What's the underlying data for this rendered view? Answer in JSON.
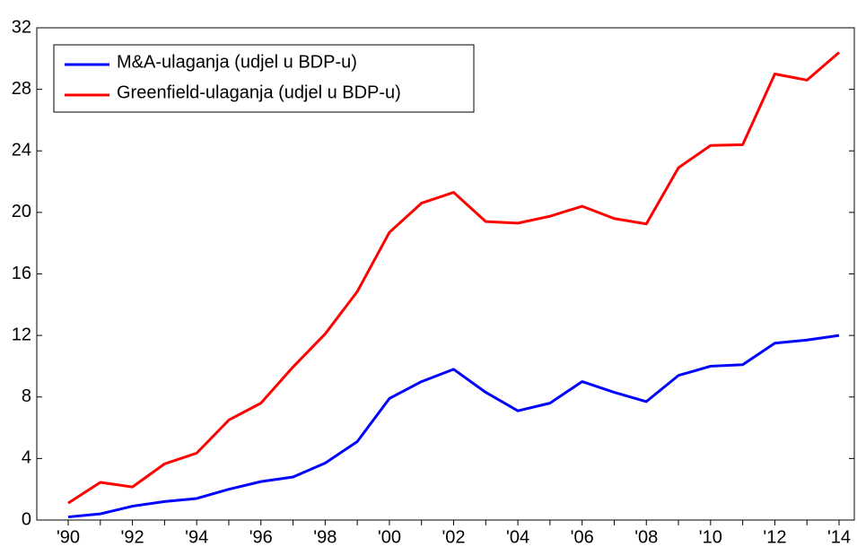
{
  "chart_data": {
    "type": "line",
    "categories": [
      "'90",
      null,
      "'92",
      null,
      "'94",
      null,
      "'96",
      null,
      "'98",
      null,
      "'00",
      null,
      "'02",
      null,
      "'04",
      null,
      "'06",
      null,
      "'08",
      null,
      "'10",
      null,
      "'12",
      null,
      "'14"
    ],
    "series": [
      {
        "name": "M&A-ulaganja (udjel u BDP-u)",
        "color": "#0000ff",
        "values": [
          0.2,
          0.4,
          0.9,
          1.2,
          1.4,
          2.0,
          2.5,
          2.8,
          3.7,
          5.1,
          7.9,
          9.0,
          9.8,
          8.3,
          7.1,
          7.6,
          9.0,
          8.3,
          7.7,
          9.4,
          10.0,
          10.1,
          11.5,
          11.7,
          12.0
        ]
      },
      {
        "name": "Greenfield-ulaganja (udjel u BDP-u)",
        "color": "#ff0000",
        "values": [
          1.1,
          2.45,
          2.15,
          3.65,
          4.35,
          6.5,
          7.6,
          9.95,
          12.1,
          14.85,
          18.7,
          20.6,
          21.3,
          19.4,
          19.3,
          19.75,
          20.4,
          19.6,
          19.25,
          22.9,
          24.35,
          24.4,
          29.0,
          28.6,
          30.4
        ]
      }
    ],
    "ylim": [
      0,
      32
    ],
    "yticks": [
      0,
      4,
      8,
      12,
      16,
      20,
      24,
      28,
      32
    ],
    "legend": "top-left"
  }
}
